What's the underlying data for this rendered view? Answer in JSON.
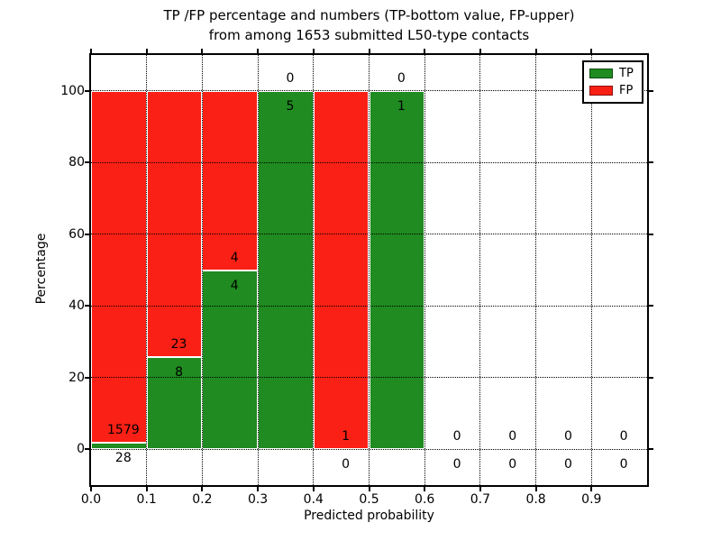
{
  "title": {
    "line1": "TP /FP percentage and numbers (TP-bottom value, FP-upper)",
    "line2": "from among 1653 submitted L50-type contacts"
  },
  "axes": {
    "x_label": "Predicted probability",
    "y_label": "Percentage"
  },
  "legend": {
    "items": [
      {
        "label": "TP",
        "color": "#1f8b20"
      },
      {
        "label": "FP",
        "color": "#fb2015"
      }
    ]
  },
  "colors": {
    "tp_green": "#1f8b20",
    "fp_red": "#fb2015",
    "background": "#ffffff",
    "grid": "#000000",
    "text": "#000000"
  },
  "chart_data": {
    "type": "bar",
    "stacked": true,
    "orientation": "vertical",
    "title": "TP /FP percentage and numbers (TP-bottom value, FP-upper) from among 1653 submitted L50-type contacts",
    "xlabel": "Predicted probability",
    "ylabel": "Percentage",
    "xlim": [
      0.0,
      1.0
    ],
    "ylim": [
      -10,
      110
    ],
    "x_ticks": [
      "0.0",
      "0.1",
      "0.2",
      "0.3",
      "0.4",
      "0.5",
      "0.6",
      "0.7",
      "0.8",
      "0.9"
    ],
    "y_ticks": [
      0,
      20,
      40,
      60,
      80,
      100
    ],
    "grid": "dotted",
    "legend_position": "upper right",
    "total_contacts": 1653,
    "bin_edges": [
      0.0,
      0.1,
      0.2,
      0.3,
      0.4,
      0.5,
      0.6,
      0.7,
      0.8,
      0.9,
      1.0
    ],
    "series": [
      {
        "name": "TP",
        "color": "#1f8b20",
        "counts": [
          28,
          8,
          4,
          5,
          0,
          1,
          0,
          0,
          0,
          0
        ]
      },
      {
        "name": "FP",
        "color": "#fb2015",
        "counts": [
          1579,
          23,
          4,
          0,
          1,
          0,
          0,
          0,
          0,
          0
        ]
      }
    ],
    "tp_percent_per_bin": [
      1.74,
      25.81,
      50.0,
      100.0,
      0.0,
      100.0,
      null,
      null,
      null,
      null
    ]
  }
}
